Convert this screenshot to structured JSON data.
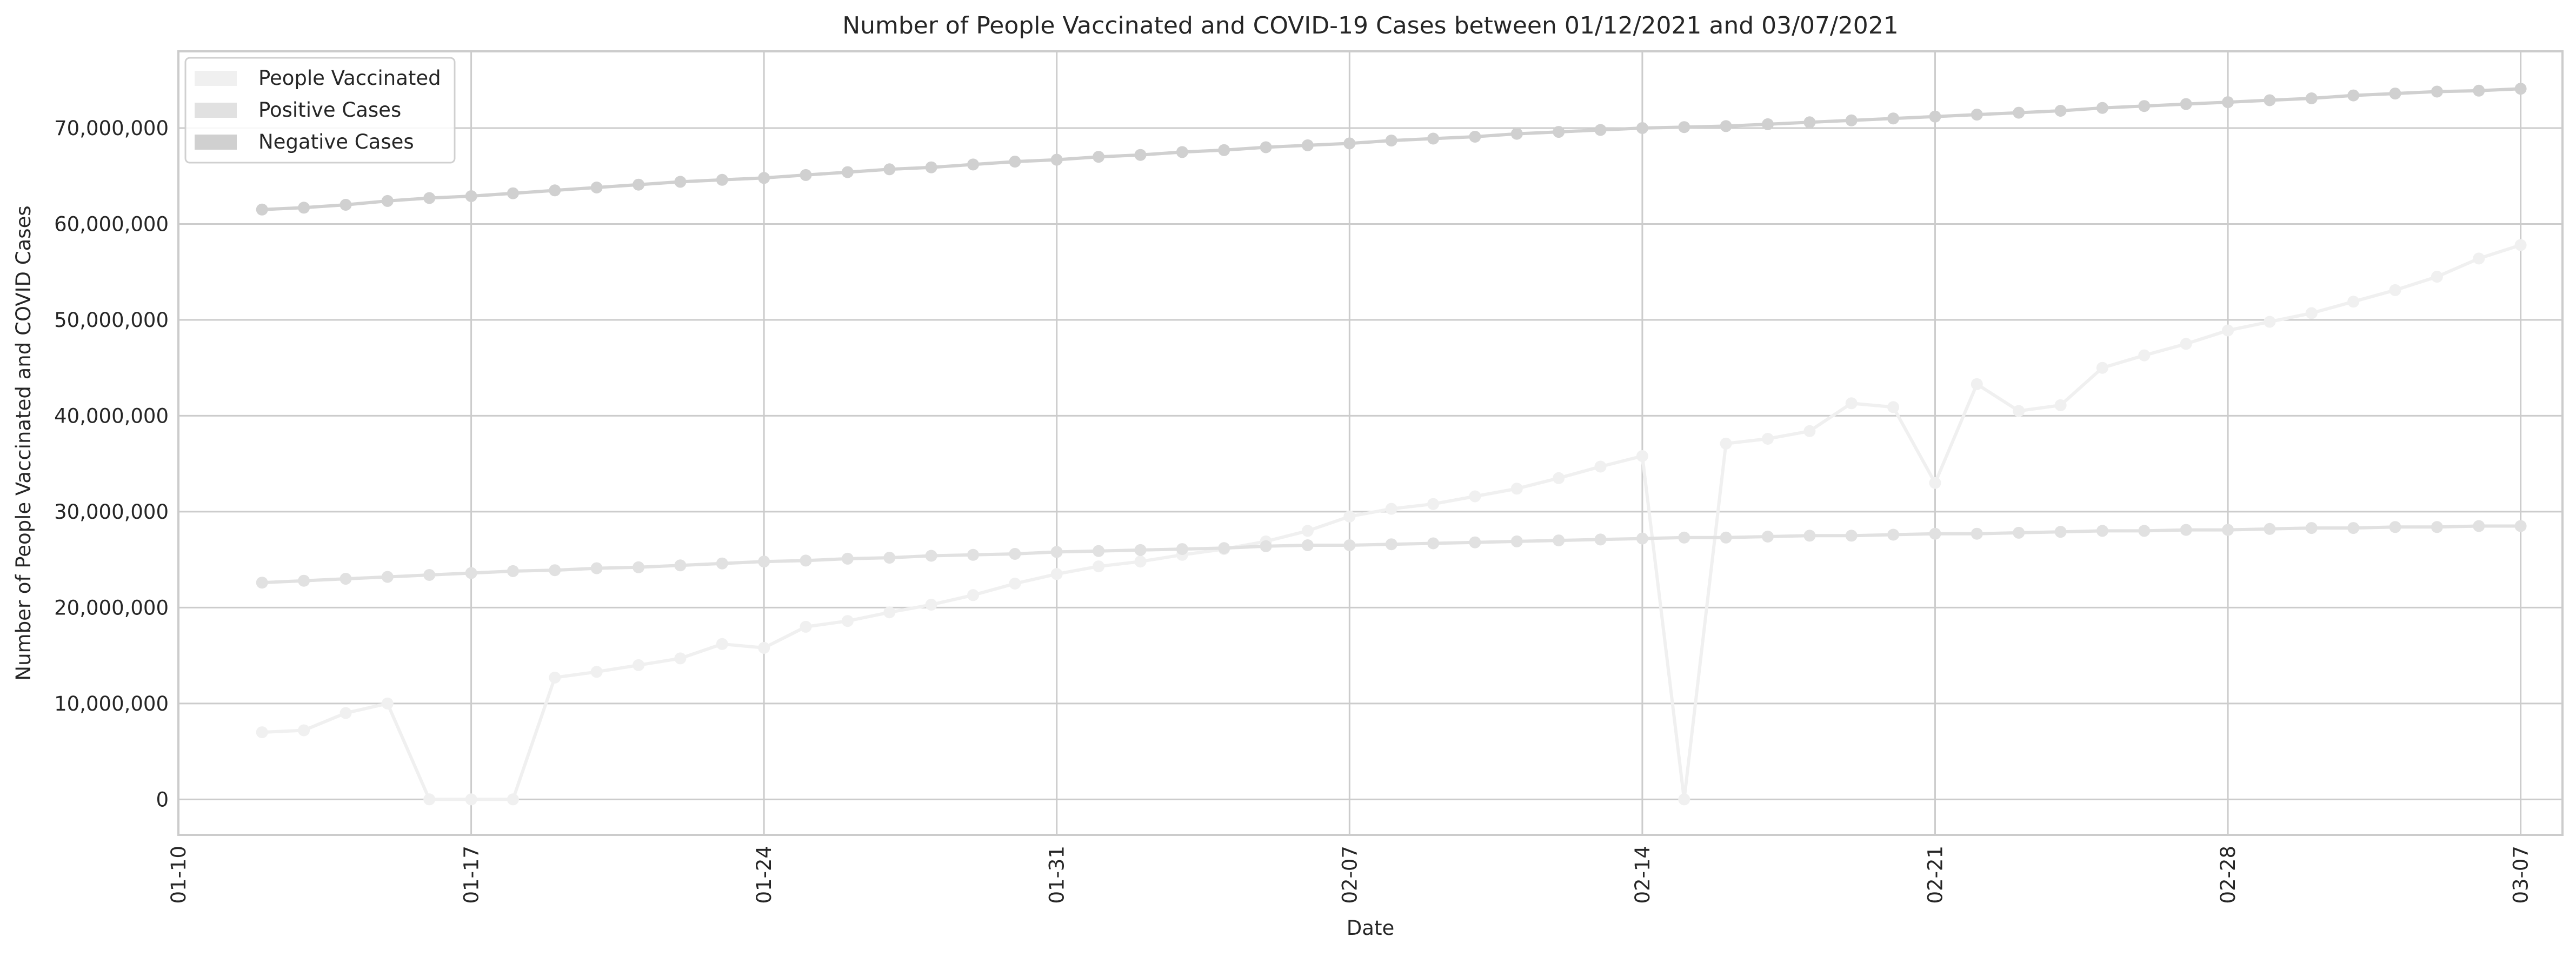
{
  "chart_data": {
    "type": "line",
    "title": "Number of People Vaccinated and COVID-19 Cases between 01/12/2021 and 03/07/2021",
    "xlabel": "Date",
    "ylabel": "Number of People Vaccinated and COVID Cases",
    "x_ticks": [
      "01-10",
      "01-17",
      "01-24",
      "01-31",
      "02-07",
      "02-14",
      "02-21",
      "02-28",
      "03-07"
    ],
    "y_ticks": [
      "0",
      "10,000,000",
      "20,000,000",
      "30,000,000",
      "40,000,000",
      "50,000,000",
      "60,000,000",
      "70,000,000"
    ],
    "xlim": [
      "2021-01-10",
      "2021-03-08"
    ],
    "ylim": [
      -3700000,
      78000000
    ],
    "grid": true,
    "legend_position": "top-left",
    "x": [
      "2021-01-12",
      "2021-01-13",
      "2021-01-14",
      "2021-01-15",
      "2021-01-16",
      "2021-01-17",
      "2021-01-18",
      "2021-01-19",
      "2021-01-20",
      "2021-01-21",
      "2021-01-22",
      "2021-01-23",
      "2021-01-24",
      "2021-01-25",
      "2021-01-26",
      "2021-01-27",
      "2021-01-28",
      "2021-01-29",
      "2021-01-30",
      "2021-01-31",
      "2021-02-01",
      "2021-02-02",
      "2021-02-03",
      "2021-02-04",
      "2021-02-05",
      "2021-02-06",
      "2021-02-07",
      "2021-02-08",
      "2021-02-09",
      "2021-02-10",
      "2021-02-11",
      "2021-02-12",
      "2021-02-13",
      "2021-02-14",
      "2021-02-15",
      "2021-02-16",
      "2021-02-17",
      "2021-02-18",
      "2021-02-19",
      "2021-02-20",
      "2021-02-21",
      "2021-02-22",
      "2021-02-23",
      "2021-02-24",
      "2021-02-25",
      "2021-02-26",
      "2021-02-27",
      "2021-02-28",
      "2021-03-01",
      "2021-03-02",
      "2021-03-03",
      "2021-03-04",
      "2021-03-05",
      "2021-03-06",
      "2021-03-07"
    ],
    "series": [
      {
        "name": "People Vaccinated",
        "color": "#f0f0f0",
        "values": [
          7000000,
          7200000,
          9000000,
          10000000,
          0,
          0,
          0,
          12700000,
          13300000,
          14000000,
          14700000,
          16200000,
          15800000,
          18000000,
          18600000,
          19500000,
          20300000,
          21300000,
          22500000,
          23500000,
          24300000,
          24800000,
          25500000,
          26100000,
          26900000,
          28000000,
          29500000,
          30300000,
          30800000,
          31600000,
          32400000,
          33500000,
          34700000,
          35800000,
          0,
          37100000,
          37600000,
          38400000,
          41300000,
          40900000,
          33000000,
          43300000,
          40500000,
          41100000,
          45000000,
          46300000,
          47500000,
          48900000,
          49800000,
          50700000,
          51900000,
          53100000,
          54500000,
          56400000,
          57800000
        ]
      },
      {
        "name": "Positive Cases",
        "color": "#e1e1e1",
        "values": [
          22600000,
          22800000,
          23000000,
          23200000,
          23400000,
          23600000,
          23800000,
          23900000,
          24100000,
          24200000,
          24400000,
          24600000,
          24800000,
          24900000,
          25100000,
          25200000,
          25400000,
          25500000,
          25600000,
          25800000,
          25900000,
          26000000,
          26100000,
          26200000,
          26400000,
          26500000,
          26500000,
          26600000,
          26700000,
          26800000,
          26900000,
          27000000,
          27100000,
          27200000,
          27300000,
          27300000,
          27400000,
          27500000,
          27500000,
          27600000,
          27700000,
          27700000,
          27800000,
          27900000,
          28000000,
          28000000,
          28100000,
          28100000,
          28200000,
          28300000,
          28300000,
          28400000,
          28400000,
          28500000,
          28500000
        ]
      },
      {
        "name": "Negative Cases",
        "color": "#d0d0d0",
        "values": [
          61500000,
          61700000,
          62000000,
          62400000,
          62700000,
          62900000,
          63200000,
          63500000,
          63800000,
          64100000,
          64400000,
          64600000,
          64800000,
          65100000,
          65400000,
          65700000,
          65900000,
          66200000,
          66500000,
          66700000,
          67000000,
          67200000,
          67500000,
          67700000,
          68000000,
          68200000,
          68400000,
          68700000,
          68900000,
          69100000,
          69400000,
          69600000,
          69800000,
          70000000,
          70100000,
          70200000,
          70400000,
          70600000,
          70800000,
          71000000,
          71200000,
          71400000,
          71600000,
          71800000,
          72100000,
          72300000,
          72500000,
          72700000,
          72900000,
          73100000,
          73400000,
          73600000,
          73800000,
          73900000,
          74100000
        ]
      }
    ]
  }
}
